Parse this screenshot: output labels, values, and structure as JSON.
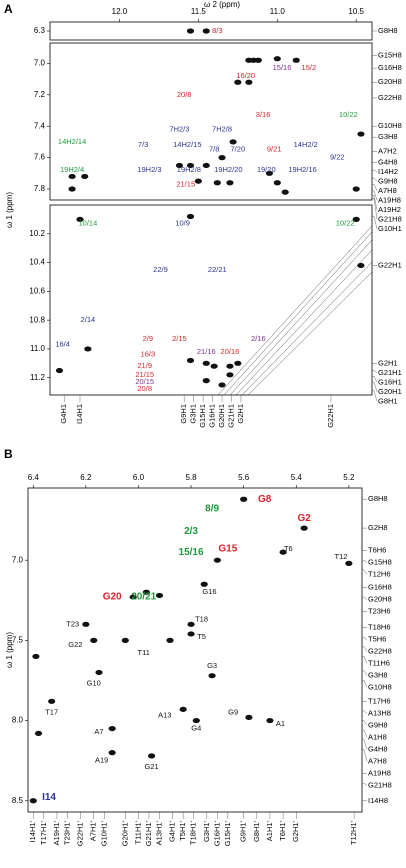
{
  "chart_data": [
    {
      "type": "nmr2d",
      "panel": "A",
      "x_label": "ω 2 (ppm)",
      "y_label": "ω 1 (ppm)",
      "xlim": [
        12.44,
        10.4
      ],
      "xticks": [
        {
          "value": 12,
          "label": "12.0"
        },
        11.5,
        {
          "value": 11,
          "label": "11.0"
        },
        10.5
      ],
      "segments": [
        {
          "ylim": [
            6.25,
            6.35
          ],
          "yticks": [
            6.3
          ]
        },
        {
          "ylim": [
            6.87,
            7.87
          ],
          "yticks": [
            {
              "value": 7,
              "label": "7.0"
            },
            7.2,
            7.4,
            7.6,
            7.8
          ]
        },
        {
          "ylim": [
            10,
            11.32
          ],
          "yticks": [
            10.2,
            10.4,
            10.6,
            10.8,
            {
              "value": 11,
              "label": "11.0"
            },
            11.2
          ]
        }
      ],
      "peak_color": "#111111",
      "x": [
        11.55,
        11.45,
        11.18,
        11.15,
        11.12,
        11.0,
        10.88,
        11.25,
        11.18,
        11.62,
        11.55,
        11.5,
        11.45,
        11.38,
        11.3,
        11.05,
        11.0,
        10.95,
        12.3,
        12.22,
        12.3,
        10.47,
        10.5,
        11.28,
        11.35,
        12.25,
        11.55,
        10.5,
        10.47,
        11.55,
        11.45,
        11.4,
        11.3,
        11.25,
        11.3,
        11.45,
        11.35,
        12.38,
        12.2
      ],
      "y": [
        6.3,
        6.3,
        6.98,
        6.98,
        6.98,
        6.97,
        6.98,
        7.12,
        7.12,
        7.65,
        7.65,
        7.75,
        7.65,
        7.76,
        7.76,
        7.7,
        7.76,
        7.82,
        7.72,
        7.72,
        7.8,
        7.45,
        7.8,
        7.5,
        7.6,
        10.1,
        10.08,
        10.1,
        10.42,
        11.08,
        11.1,
        11.12,
        11.12,
        11.1,
        11.18,
        11.22,
        11.25,
        11.15,
        11.0
      ],
      "right_labels": [
        {
          "value": 6.3,
          "label": "G8H8"
        },
        {
          "value": 6.95,
          "label": "G15H8"
        },
        {
          "value": 7.03,
          "label": "G16H8"
        },
        {
          "value": 7.12,
          "label": "G20H8"
        },
        {
          "value": 7.22,
          "label": "G22H8"
        },
        {
          "value": 7.4,
          "label": "G10H8"
        },
        {
          "value": 7.47,
          "label": "G3H8"
        },
        {
          "value": 7.56,
          "label": "A7H2"
        },
        {
          "value": 7.63,
          "label": "G4H8"
        },
        {
          "value": 7.68,
          "label": "I14H2"
        },
        {
          "value": 7.73,
          "label": "G9H8"
        },
        {
          "value": 7.77,
          "label": "A7H8"
        },
        {
          "value": 7.81,
          "label": "A19H8"
        },
        {
          "value": 7.84,
          "label": "A19H2"
        },
        {
          "value": 7.86,
          "label": "G21H8"
        },
        {
          "value": 10.08,
          "label": "G10H1"
        },
        {
          "value": 10.42,
          "label": "G22H1"
        },
        {
          "value": 11.1,
          "label": "G2H1"
        },
        {
          "value": 11.15,
          "label": "G21H1"
        },
        {
          "value": 11.19,
          "label": "G16H1"
        },
        {
          "value": 11.23,
          "label": "G20H1"
        },
        {
          "value": 11.29,
          "label": "G8H1"
        }
      ],
      "bottom_labels": [
        {
          "value": 12.35,
          "label": "G4H1"
        },
        {
          "value": 12.25,
          "label": "I14H1"
        },
        {
          "value": 11.59,
          "label": "G9H1"
        },
        {
          "value": 11.53,
          "label": "G3H1"
        },
        {
          "value": 11.47,
          "label": "G15H1"
        },
        {
          "value": 11.41,
          "label": "G16H1"
        },
        {
          "value": 11.35,
          "label": "G20H1"
        },
        {
          "value": 11.29,
          "label": "G21H1"
        },
        {
          "value": 11.23,
          "label": "G2H1"
        },
        {
          "value": 10.66,
          "label": "G22H1"
        }
      ],
      "annotations": [
        {
          "text": "8/3",
          "x": 11.38,
          "y": 6.3,
          "color": "#d8232a"
        },
        {
          "text": "15/16",
          "x": 10.97,
          "y": 7.03,
          "color": "#7a3296"
        },
        {
          "text": "15/2",
          "x": 10.8,
          "y": 7.03,
          "color": "#d8232a"
        },
        {
          "text": "16/20",
          "x": 11.2,
          "y": 7.08,
          "color": "#d8232a"
        },
        {
          "text": "20/8",
          "x": 11.59,
          "y": 7.2,
          "color": "#d8232a"
        },
        {
          "text": "3/16",
          "x": 11.09,
          "y": 7.33,
          "color": "#d8232a"
        },
        {
          "text": "10/22",
          "x": 10.55,
          "y": 7.33,
          "color": "#1e9a3c"
        },
        {
          "text": "7H2/3",
          "x": 11.62,
          "y": 7.42,
          "color": "#2a3590"
        },
        {
          "text": "7H2/8",
          "x": 11.35,
          "y": 7.42,
          "color": "#2a3590"
        },
        {
          "text": "14H2/14",
          "x": 12.3,
          "y": 7.5,
          "color": "#1e9a3c"
        },
        {
          "text": "7/3",
          "x": 11.85,
          "y": 7.52,
          "color": "#2a3590"
        },
        {
          "text": "14H2/15",
          "x": 11.57,
          "y": 7.52,
          "color": "#2a3590"
        },
        {
          "text": "7/8",
          "x": 11.4,
          "y": 7.55,
          "color": "#2a3590"
        },
        {
          "text": "7/20",
          "x": 11.25,
          "y": 7.55,
          "color": "#2a3590"
        },
        {
          "text": "9/21",
          "x": 11.02,
          "y": 7.55,
          "color": "#d8232a"
        },
        {
          "text": "14H2/2",
          "x": 10.82,
          "y": 7.52,
          "color": "#2a3590"
        },
        {
          "text": "9/22",
          "x": 10.62,
          "y": 7.6,
          "color": "#2a3590"
        },
        {
          "text": "19H2/4",
          "x": 12.3,
          "y": 7.68,
          "color": "#1e9a3c"
        },
        {
          "text": "19H2/3",
          "x": 11.81,
          "y": 7.68,
          "color": "#2a3590"
        },
        {
          "text": "19H2/8",
          "x": 11.56,
          "y": 7.68,
          "color": "#2a3590"
        },
        {
          "text": "19H2/20",
          "x": 11.31,
          "y": 7.68,
          "color": "#2a3590"
        },
        {
          "text": "19/20",
          "x": 11.07,
          "y": 7.68,
          "color": "#2a3590"
        },
        {
          "text": "19H2/16",
          "x": 10.84,
          "y": 7.68,
          "color": "#2a3590"
        },
        {
          "text": "21/15",
          "x": 11.58,
          "y": 7.77,
          "color": "#d8232a"
        },
        {
          "text": "10/14",
          "x": 12.2,
          "y": 10.13,
          "color": "#1e9a3c"
        },
        {
          "text": "10/9",
          "x": 11.6,
          "y": 10.13,
          "color": "#2a3590"
        },
        {
          "text": "10/22",
          "x": 10.57,
          "y": 10.13,
          "color": "#1e9a3c"
        },
        {
          "text": "22/9",
          "x": 11.74,
          "y": 10.45,
          "color": "#2a3590"
        },
        {
          "text": "22/21",
          "x": 11.38,
          "y": 10.45,
          "color": "#2a3590"
        },
        {
          "text": "2/14",
          "x": 12.2,
          "y": 10.8,
          "color": "#2a3590"
        },
        {
          "text": "16/4",
          "x": 12.36,
          "y": 10.97,
          "color": "#2a3590"
        },
        {
          "text": "2/9",
          "x": 11.82,
          "y": 10.93,
          "color": "#d8232a"
        },
        {
          "text": "2/15",
          "x": 11.62,
          "y": 10.93,
          "color": "#d8232a"
        },
        {
          "text": "2/16",
          "x": 11.12,
          "y": 10.93,
          "color": "#7a3296"
        },
        {
          "text": "21/16",
          "x": 11.45,
          "y": 11.02,
          "color": "#7a3296"
        },
        {
          "text": "20/16",
          "x": 11.3,
          "y": 11.02,
          "color": "#d8232a"
        },
        {
          "text": "16/3",
          "x": 11.82,
          "y": 11.04,
          "color": "#d8232a"
        },
        {
          "text": "21/9",
          "x": 11.84,
          "y": 11.12,
          "color": "#d8232a"
        },
        {
          "text": "21/15",
          "x": 11.84,
          "y": 11.18,
          "color": "#d8232a"
        },
        {
          "text": "20/15",
          "x": 11.84,
          "y": 11.23,
          "color": "#7a3296"
        },
        {
          "text": "20/8",
          "x": 11.84,
          "y": 11.28,
          "color": "#d8232a"
        }
      ]
    },
    {
      "type": "nmr2d",
      "panel": "B",
      "y_label": "ω 1 (ppm)",
      "xlim": [
        6.42,
        5.15
      ],
      "xticks": [
        6.4,
        6.2,
        {
          "value": 6,
          "label": "6.0"
        },
        5.8,
        5.6,
        5.4,
        5.2
      ],
      "segments": [
        {
          "ylim": [
            6.55,
            8.57
          ],
          "yticks": [
            {
              "value": 7,
              "label": "7.0"
            },
            7.5,
            {
              "value": 8,
              "label": "8.0"
            },
            8.5
          ]
        }
      ],
      "peak_color": "#111111",
      "x": [
        5.6,
        5.37,
        5.7,
        5.45,
        5.2,
        5.75,
        5.92,
        5.97,
        6.02,
        5.8,
        5.8,
        6.2,
        6.17,
        6.05,
        5.88,
        5.72,
        6.15,
        6.33,
        5.83,
        5.78,
        5.58,
        5.5,
        6.1,
        6.1,
        5.95,
        6.4,
        6.38,
        6.39
      ],
      "y": [
        6.62,
        6.8,
        7.0,
        6.95,
        7.02,
        7.15,
        7.22,
        7.2,
        7.23,
        7.4,
        7.46,
        7.4,
        7.5,
        7.5,
        7.5,
        7.72,
        7.7,
        7.88,
        7.93,
        8.0,
        7.98,
        8.0,
        8.05,
        8.2,
        8.22,
        8.5,
        8.08,
        7.6
      ],
      "right_labels": [
        {
          "value": 6.62,
          "label": "G8H8"
        },
        {
          "value": 6.8,
          "label": "G2H8"
        },
        {
          "value": 6.94,
          "label": "T6H6"
        },
        {
          "value": 7.0,
          "label": "G15H8"
        },
        {
          "value": 7.06,
          "label": "T12H6"
        },
        {
          "value": 7.17,
          "label": "G16H8"
        },
        {
          "value": 7.23,
          "label": "G20H8"
        },
        {
          "value": 7.32,
          "label": "T23H6"
        },
        {
          "value": 7.42,
          "label": "T18H6"
        },
        {
          "value": 7.48,
          "label": "T5H6"
        },
        {
          "value": 7.54,
          "label": "G22H8"
        },
        {
          "value": 7.6,
          "label": "T11H6"
        },
        {
          "value": 7.69,
          "label": "G3H8"
        },
        {
          "value": 7.75,
          "label": "G10H8"
        },
        {
          "value": 7.88,
          "label": "T17H6"
        },
        {
          "value": 7.94,
          "label": "A13H8"
        },
        {
          "value": 8.0,
          "label": "G9H8"
        },
        {
          "value": 8.06,
          "label": "A1H8"
        },
        {
          "value": 8.12,
          "label": "G4H8"
        },
        {
          "value": 8.18,
          "label": "A7H8"
        },
        {
          "value": 8.33,
          "label": "A19H8"
        },
        {
          "value": 8.39,
          "label": "G21H8"
        },
        {
          "value": 8.5,
          "label": "I14H8"
        }
      ],
      "bottom_labels": [
        {
          "value": 6.4,
          "label": "I14H1'"
        },
        {
          "value": 6.36,
          "label": "T17H1'"
        },
        {
          "value": 6.31,
          "label": "A19H1'"
        },
        {
          "value": 6.27,
          "label": "T23H1'"
        },
        {
          "value": 6.22,
          "label": "G22H1'"
        },
        {
          "value": 6.17,
          "label": "A7H1'"
        },
        {
          "value": 6.13,
          "label": "G10H1'"
        },
        {
          "value": 6.05,
          "label": "G20H1'"
        },
        {
          "value": 6.0,
          "label": "T11H1'"
        },
        {
          "value": 5.96,
          "label": "G21H1'"
        },
        {
          "value": 5.92,
          "label": "A13H1'"
        },
        {
          "value": 5.87,
          "label": "G4H1'"
        },
        {
          "value": 5.83,
          "label": "T5H1'"
        },
        {
          "value": 5.79,
          "label": "T18H1'"
        },
        {
          "value": 5.74,
          "label": "G3H1'"
        },
        {
          "value": 5.7,
          "label": "G16H1'"
        },
        {
          "value": 5.66,
          "label": "G15H1'"
        },
        {
          "value": 5.6,
          "label": "G9H1'"
        },
        {
          "value": 5.55,
          "label": "G8H1'"
        },
        {
          "value": 5.5,
          "label": "A1H1'"
        },
        {
          "value": 5.45,
          "label": "T6H1'"
        },
        {
          "value": 5.4,
          "label": "G2H1'"
        },
        {
          "value": 5.18,
          "label": "T12H1'"
        }
      ],
      "annotations": [
        {
          "text": "G8",
          "x": 5.52,
          "y": 6.62,
          "color": "#d8232a",
          "weight": "bold"
        },
        {
          "text": "8/9",
          "x": 5.72,
          "y": 6.68,
          "color": "#1e9a3c",
          "weight": "bold"
        },
        {
          "text": "G2",
          "x": 5.37,
          "y": 6.74,
          "color": "#d8232a",
          "weight": "bold"
        },
        {
          "text": "2/3",
          "x": 5.8,
          "y": 6.82,
          "color": "#1e9a3c",
          "weight": "bold"
        },
        {
          "text": "15/16",
          "x": 5.8,
          "y": 6.95,
          "color": "#1e9a3c",
          "weight": "bold"
        },
        {
          "text": "G15",
          "x": 5.66,
          "y": 6.93,
          "color": "#d8232a",
          "weight": "bold"
        },
        {
          "text": "G20",
          "x": 6.1,
          "y": 7.23,
          "color": "#d8232a",
          "weight": "bold"
        },
        {
          "text": "20/21",
          "x": 5.98,
          "y": 7.23,
          "color": "#1e9a3c",
          "weight": "bold"
        },
        {
          "text": "T6",
          "x": 5.43,
          "y": 6.93,
          "color": "#111111"
        },
        {
          "text": "T12",
          "x": 5.23,
          "y": 6.98,
          "color": "#111111"
        },
        {
          "text": "G16",
          "x": 5.73,
          "y": 7.2,
          "color": "#111111"
        },
        {
          "text": "T18",
          "x": 5.76,
          "y": 7.37,
          "color": "#111111"
        },
        {
          "text": "T5",
          "x": 5.76,
          "y": 7.48,
          "color": "#111111"
        },
        {
          "text": "T23",
          "x": 6.25,
          "y": 7.4,
          "color": "#111111"
        },
        {
          "text": "G22",
          "x": 6.24,
          "y": 7.53,
          "color": "#111111"
        },
        {
          "text": "T11",
          "x": 5.98,
          "y": 7.58,
          "color": "#111111"
        },
        {
          "text": "G3",
          "x": 5.72,
          "y": 7.66,
          "color": "#111111"
        },
        {
          "text": "G10",
          "x": 6.17,
          "y": 7.77,
          "color": "#111111"
        },
        {
          "text": "T17",
          "x": 6.33,
          "y": 7.95,
          "color": "#111111"
        },
        {
          "text": "A13",
          "x": 5.9,
          "y": 7.97,
          "color": "#111111"
        },
        {
          "text": "G9",
          "x": 5.64,
          "y": 7.95,
          "color": "#111111"
        },
        {
          "text": "G4",
          "x": 5.78,
          "y": 8.05,
          "color": "#111111"
        },
        {
          "text": "A1",
          "x": 5.46,
          "y": 8.02,
          "color": "#111111"
        },
        {
          "text": "A7",
          "x": 6.15,
          "y": 8.07,
          "color": "#111111"
        },
        {
          "text": "A19",
          "x": 6.14,
          "y": 8.25,
          "color": "#111111"
        },
        {
          "text": "G21",
          "x": 5.95,
          "y": 8.29,
          "color": "#111111"
        },
        {
          "text": "I14",
          "x": 6.34,
          "y": 8.48,
          "color": "#2a3590",
          "weight": "bold"
        }
      ]
    }
  ]
}
